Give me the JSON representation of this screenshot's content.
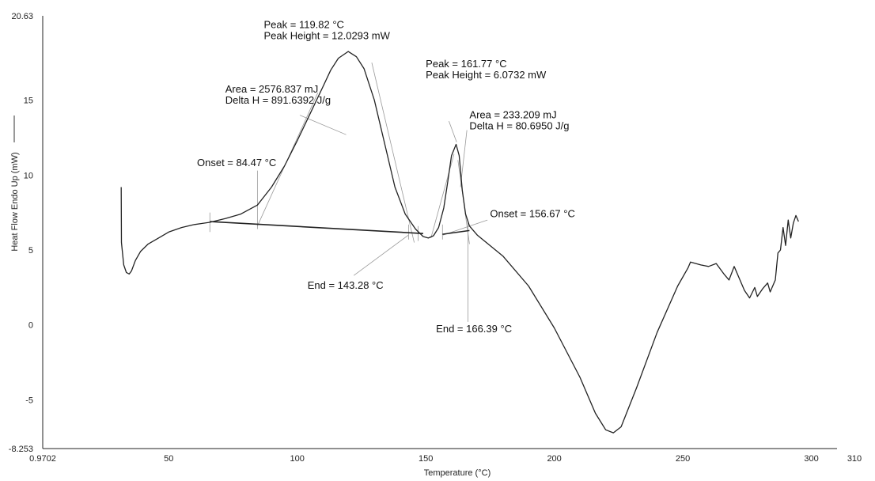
{
  "chart_data": {
    "type": "line",
    "xlabel": "Temperature (°C)",
    "ylabel": "Heat Flow Endo Up (mW)",
    "xlim": [
      0.9702,
      310
    ],
    "ylim": [
      -8.253,
      20.63
    ],
    "x_ticks": [
      {
        "value": 0.9702,
        "label": "0.9702"
      },
      {
        "value": 50,
        "label": "50"
      },
      {
        "value": 100,
        "label": "100"
      },
      {
        "value": 150,
        "label": "150"
      },
      {
        "value": 200,
        "label": "200"
      },
      {
        "value": 250,
        "label": "250"
      },
      {
        "value": 300,
        "label": "300"
      },
      {
        "value": 310,
        "label": "310"
      }
    ],
    "y_ticks": [
      {
        "value": -8.253,
        "label": "-8.253"
      },
      {
        "value": -5,
        "label": "-5"
      },
      {
        "value": 0,
        "label": "0"
      },
      {
        "value": 5,
        "label": "5"
      },
      {
        "value": 10,
        "label": "10"
      },
      {
        "value": 15,
        "label": "15"
      },
      {
        "value": 20.63,
        "label": "20.63"
      }
    ],
    "grid": false,
    "series": [
      {
        "points": [
          [
            31.5,
            9.2
          ],
          [
            31.6,
            5.5
          ],
          [
            32.5,
            4.0
          ],
          [
            33.5,
            3.5
          ],
          [
            34.6,
            3.4
          ],
          [
            35.5,
            3.6
          ],
          [
            37,
            4.3
          ],
          [
            39,
            4.9
          ],
          [
            42,
            5.4
          ],
          [
            46,
            5.8
          ],
          [
            50,
            6.2
          ],
          [
            55,
            6.5
          ],
          [
            60,
            6.7
          ],
          [
            66,
            6.85
          ],
          [
            72,
            7.1
          ],
          [
            78,
            7.4
          ],
          [
            84.5,
            8.0
          ],
          [
            90,
            9.2
          ],
          [
            95,
            10.6
          ],
          [
            100,
            12.3
          ],
          [
            105,
            14.1
          ],
          [
            110,
            15.9
          ],
          [
            113,
            17.0
          ],
          [
            116,
            17.8
          ],
          [
            119.8,
            18.25
          ],
          [
            123,
            17.9
          ],
          [
            126,
            17.1
          ],
          [
            130,
            15.0
          ],
          [
            134,
            12.1
          ],
          [
            138,
            9.2
          ],
          [
            142,
            7.4
          ],
          [
            146,
            6.4
          ],
          [
            149,
            5.9
          ],
          [
            151,
            5.8
          ],
          [
            153,
            5.95
          ],
          [
            155,
            6.5
          ],
          [
            157,
            7.8
          ],
          [
            158.5,
            9.5
          ],
          [
            160,
            11.3
          ],
          [
            161.8,
            12.05
          ],
          [
            163,
            11.3
          ],
          [
            164.2,
            9.0
          ],
          [
            165.5,
            7.4
          ],
          [
            167,
            6.6
          ],
          [
            170,
            6.0
          ],
          [
            180,
            4.6
          ],
          [
            190,
            2.6
          ],
          [
            200,
            -0.2
          ],
          [
            210,
            -3.5
          ],
          [
            216,
            -5.9
          ],
          [
            220,
            -7.0
          ],
          [
            223,
            -7.2
          ],
          [
            226,
            -6.8
          ],
          [
            232,
            -4.2
          ],
          [
            240,
            -0.5
          ],
          [
            248,
            2.6
          ],
          [
            252,
            3.8
          ],
          [
            253,
            4.2
          ],
          [
            257,
            4.0
          ],
          [
            260,
            3.9
          ],
          [
            263,
            4.1
          ],
          [
            266,
            3.4
          ],
          [
            268,
            3.0
          ],
          [
            270,
            3.9
          ],
          [
            272,
            3.1
          ],
          [
            274,
            2.3
          ],
          [
            276,
            1.8
          ],
          [
            278,
            2.5
          ],
          [
            279,
            1.9
          ],
          [
            281,
            2.4
          ],
          [
            283,
            2.8
          ],
          [
            284,
            2.2
          ],
          [
            286,
            3.0
          ],
          [
            287,
            4.8
          ],
          [
            288,
            5.0
          ],
          [
            289,
            6.5
          ],
          [
            290,
            5.3
          ],
          [
            291,
            7.0
          ],
          [
            292,
            5.8
          ],
          [
            293,
            6.8
          ],
          [
            294,
            7.3
          ],
          [
            295,
            6.9
          ]
        ]
      }
    ],
    "baselines": [
      [
        [
          66,
          6.9
        ],
        [
          149,
          6.1
        ]
      ],
      [
        [
          156.5,
          6.05
        ],
        [
          167,
          6.3
        ]
      ]
    ],
    "markers": [
      {
        "x": 66,
        "y1": 6.2,
        "y2": 7.5
      },
      {
        "x": 84.5,
        "y1": 6.4,
        "y2": 10.3
      },
      {
        "x": 143.3,
        "y1": 5.7,
        "y2": 6.7
      },
      {
        "x": 147,
        "y1": 5.6,
        "y2": 6.6
      },
      {
        "x": 156.5,
        "y1": 5.7,
        "y2": 6.7
      },
      {
        "x": 166.4,
        "y1": 0.2,
        "y2": 6.9
      }
    ],
    "tangents": [
      [
        [
          84.5,
          6.6
        ],
        [
          108,
          15.5
        ]
      ],
      [
        [
          129,
          17.5
        ],
        [
          145.5,
          5.5
        ]
      ],
      [
        [
          152,
          5.8
        ],
        [
          161,
          11.4
        ]
      ],
      [
        [
          162.5,
          11.0
        ],
        [
          167,
          5.4
        ]
      ]
    ],
    "annotations": [
      {
        "id": "peak1",
        "lines": [
          "Peak = 119.82 °C",
          "Peak Height = 12.0293 mW"
        ],
        "x": 87,
        "y": 19.8,
        "pointer": [
          [
            119.82,
            18.4
          ],
          [
            119.82,
            18.4
          ]
        ]
      },
      {
        "id": "area1",
        "lines": [
          "Area = 2576.837 mJ",
          "Delta H = 891.6392 J/g"
        ],
        "x": 72,
        "y": 15.5,
        "pointer": [
          [
            101,
            14.0
          ],
          [
            119,
            12.7
          ]
        ]
      },
      {
        "id": "onset1",
        "lines": [
          "Onset = 84.47 °C"
        ],
        "x": 61,
        "y": 10.6,
        "pointer": [
          [
            84.5,
            8.2
          ],
          [
            84.5,
            8.2
          ]
        ]
      },
      {
        "id": "end1",
        "lines": [
          "End = 143.28 °C"
        ],
        "x": 104,
        "y": 2.4,
        "pointer": [
          [
            122,
            3.3
          ],
          [
            143.3,
            6.0
          ]
        ]
      },
      {
        "id": "peak2",
        "lines": [
          "Peak = 161.77 °C",
          "Peak Height = 6.0732 mW"
        ],
        "x": 150,
        "y": 17.2,
        "pointer": [
          [
            159,
            13.6
          ],
          [
            162,
            12.2
          ]
        ]
      },
      {
        "id": "area2",
        "lines": [
          "Area = 233.209 mJ",
          "Delta H = 80.6950 J/g"
        ],
        "x": 167,
        "y": 13.8,
        "pointer": [
          [
            166,
            13.0
          ],
          [
            163.5,
            9.2
          ]
        ]
      },
      {
        "id": "onset2",
        "lines": [
          "Onset = 156.67 °C"
        ],
        "x": 175,
        "y": 7.2,
        "pointer": [
          [
            156.7,
            6.0
          ],
          [
            174,
            7.0
          ]
        ]
      },
      {
        "id": "end2",
        "lines": [
          "End = 166.39 °C"
        ],
        "x": 154,
        "y": -0.5,
        "pointer": [
          [
            166.4,
            0.2
          ],
          [
            166.4,
            0.2
          ]
        ]
      }
    ]
  }
}
